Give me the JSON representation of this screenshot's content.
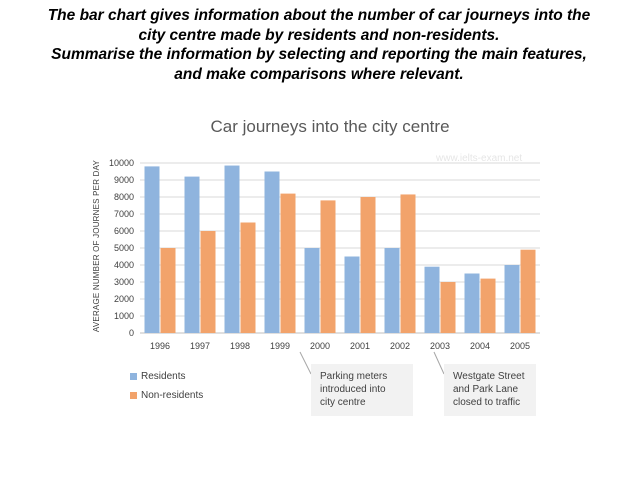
{
  "prompt": {
    "line1": "The bar chart gives information about the number of car journeys into the",
    "line2": "city centre made by residents and non-residents.",
    "line3": "Summarise the information by selecting and reporting the main features,",
    "line4": "and make comparisons where relevant."
  },
  "watermark": "www.ielts-exam.net",
  "callouts": {
    "parking": [
      "Parking meters",
      "introduced into",
      "city centre"
    ],
    "westgate": [
      "Westgate Street",
      "and Park Lane",
      "closed to traffic"
    ]
  },
  "colors": {
    "residents": "#8fb4de",
    "non_residents": "#f2a36b",
    "grid": "#d9d9d9",
    "callout_bg": "#f2f2f2"
  },
  "chart_data": {
    "type": "bar",
    "title": "Car journeys into the city centre",
    "xlabel": "",
    "ylabel": "AVERAGE NUMBER OF JOURNES PER DAY",
    "categories": [
      "1996",
      "1997",
      "1998",
      "1999",
      "2000",
      "2001",
      "2002",
      "2003",
      "2004",
      "2005"
    ],
    "series": [
      {
        "name": "Residents",
        "values": [
          9800,
          9200,
          9850,
          9500,
          5000,
          4500,
          5000,
          3900,
          3500,
          4000
        ]
      },
      {
        "name": "Non-residents",
        "values": [
          5000,
          6000,
          6500,
          8200,
          7800,
          8000,
          8150,
          3000,
          3200,
          4900
        ]
      }
    ],
    "ylim": [
      0,
      10000
    ],
    "yticks": [
      "0",
      "1000",
      "2000",
      "3000",
      "4000",
      "5000",
      "6000",
      "7000",
      "8000",
      "9000",
      "10000"
    ],
    "grid": true,
    "legend_position": "bottom-left"
  }
}
